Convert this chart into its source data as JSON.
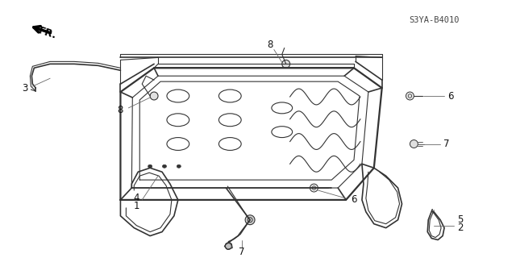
{
  "bg_color": "#ffffff",
  "line_color": "#333333",
  "text_color": "#111111",
  "diagram_code": "S3YA-B4010",
  "fr_label": "FR.",
  "label_fontsize": 8.5,
  "code_fontsize": 7.5
}
